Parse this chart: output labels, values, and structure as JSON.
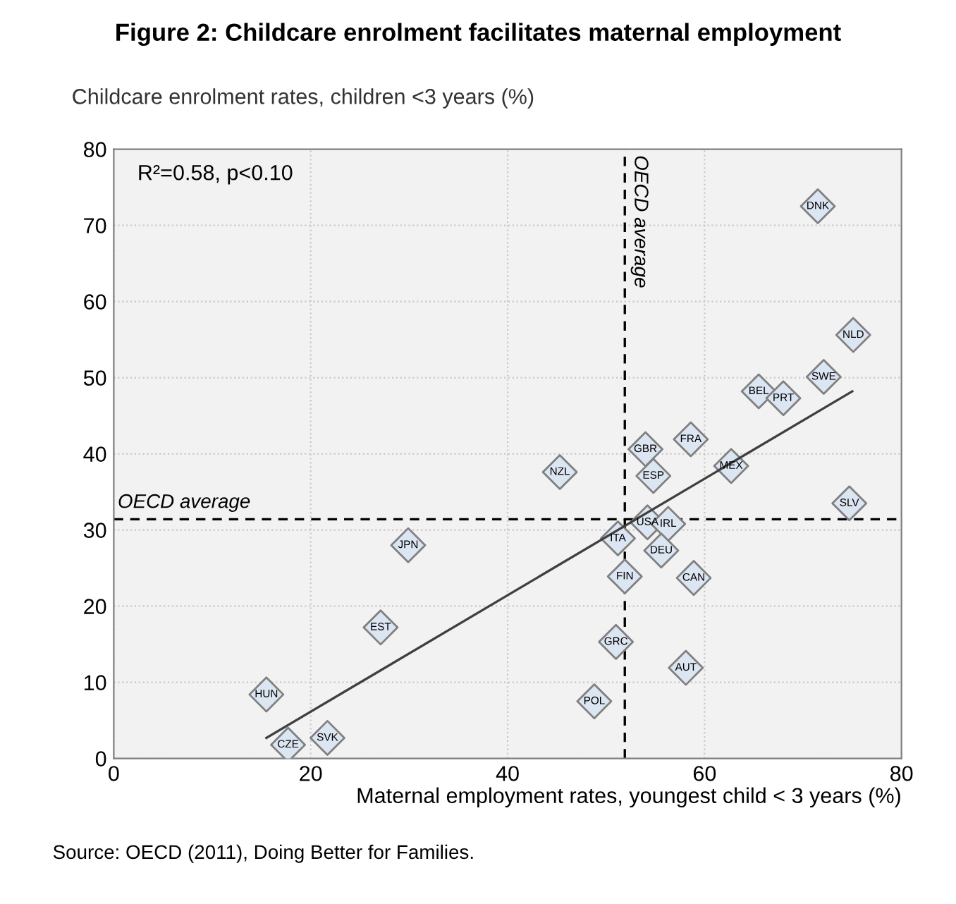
{
  "chart_data": {
    "type": "scatter",
    "title": "Figure 2: Childcare enrolment facilitates maternal employment",
    "ylabel": "Childcare enrolment rates, children <3 years (%)",
    "xlabel": "Maternal employment rates, youngest child < 3 years (%)",
    "xlim": [
      0,
      80
    ],
    "ylim": [
      0,
      80
    ],
    "xticks": [
      0,
      20,
      40,
      60,
      80
    ],
    "yticks": [
      0,
      10,
      20,
      30,
      40,
      50,
      60,
      70,
      80
    ],
    "grid": true,
    "legend": false,
    "series": [
      {
        "marker": "diamond",
        "color": "#dce6f2",
        "x": [
          15.5,
          17.7,
          21.7,
          27.1,
          29.9,
          45.3,
          54.0,
          54.8,
          58.6,
          62.7,
          65.5,
          68.0,
          72.1,
          75.1,
          71.5,
          74.7,
          54.2,
          56.3,
          51.2,
          55.6,
          51.9,
          58.9,
          51.0,
          58.1,
          48.8
        ],
        "values": [
          8.4,
          1.8,
          2.7,
          17.2,
          28.0,
          37.6,
          40.6,
          37.1,
          41.9,
          38.4,
          48.2,
          47.3,
          50.1,
          55.6,
          72.5,
          33.5,
          31.0,
          30.8,
          28.9,
          27.3,
          23.9,
          23.7,
          15.3,
          11.9,
          7.5
        ]
      },
      {
        "type": "line",
        "marker": "none",
        "color": "#404040",
        "x": [
          15.5,
          75.0
        ],
        "values": [
          2.7,
          48.2
        ]
      }
    ],
    "ref_lines": [
      {
        "axis": "y",
        "value": 31.4,
        "label": "OECD average"
      },
      {
        "axis": "x",
        "value": 51.9,
        "label": "OECD average"
      }
    ],
    "annotations": [
      "R²=0.58, p<0.10",
      "Source: OECD (2011), Doing Better for Families.",
      {
        "text": "HUN",
        "x": 15.5,
        "y": 8.4
      },
      {
        "text": "CZE",
        "x": 17.7,
        "y": 1.8
      },
      {
        "text": "SVK",
        "x": 21.7,
        "y": 2.7
      },
      {
        "text": "EST",
        "x": 27.1,
        "y": 17.2
      },
      {
        "text": "JPN",
        "x": 29.9,
        "y": 28.0
      },
      {
        "text": "NZL",
        "x": 45.3,
        "y": 37.6
      },
      {
        "text": "GBR",
        "x": 54.0,
        "y": 40.6
      },
      {
        "text": "ESP",
        "x": 54.8,
        "y": 37.1
      },
      {
        "text": "FRA",
        "x": 58.6,
        "y": 41.9
      },
      {
        "text": "MEX",
        "x": 62.7,
        "y": 38.4
      },
      {
        "text": "BEL",
        "x": 65.5,
        "y": 48.2
      },
      {
        "text": "PRT",
        "x": 68.0,
        "y": 47.3
      },
      {
        "text": "SWE",
        "x": 72.1,
        "y": 50.1
      },
      {
        "text": "NLD",
        "x": 75.1,
        "y": 55.6
      },
      {
        "text": "DNK",
        "x": 71.5,
        "y": 72.5
      },
      {
        "text": "SLV",
        "x": 74.7,
        "y": 33.5
      },
      {
        "text": "USA",
        "x": 54.2,
        "y": 31.0
      },
      {
        "text": "IRL",
        "x": 56.3,
        "y": 30.8
      },
      {
        "text": "ITA",
        "x": 51.2,
        "y": 28.9
      },
      {
        "text": "DEU",
        "x": 55.6,
        "y": 27.3
      },
      {
        "text": "FIN",
        "x": 51.9,
        "y": 23.9
      },
      {
        "text": "CAN",
        "x": 58.9,
        "y": 23.7
      },
      {
        "text": "GRC",
        "x": 51.0,
        "y": 15.3
      },
      {
        "text": "AUT",
        "x": 58.1,
        "y": 11.9
      },
      {
        "text": "POL",
        "x": 48.8,
        "y": 7.5
      }
    ]
  }
}
